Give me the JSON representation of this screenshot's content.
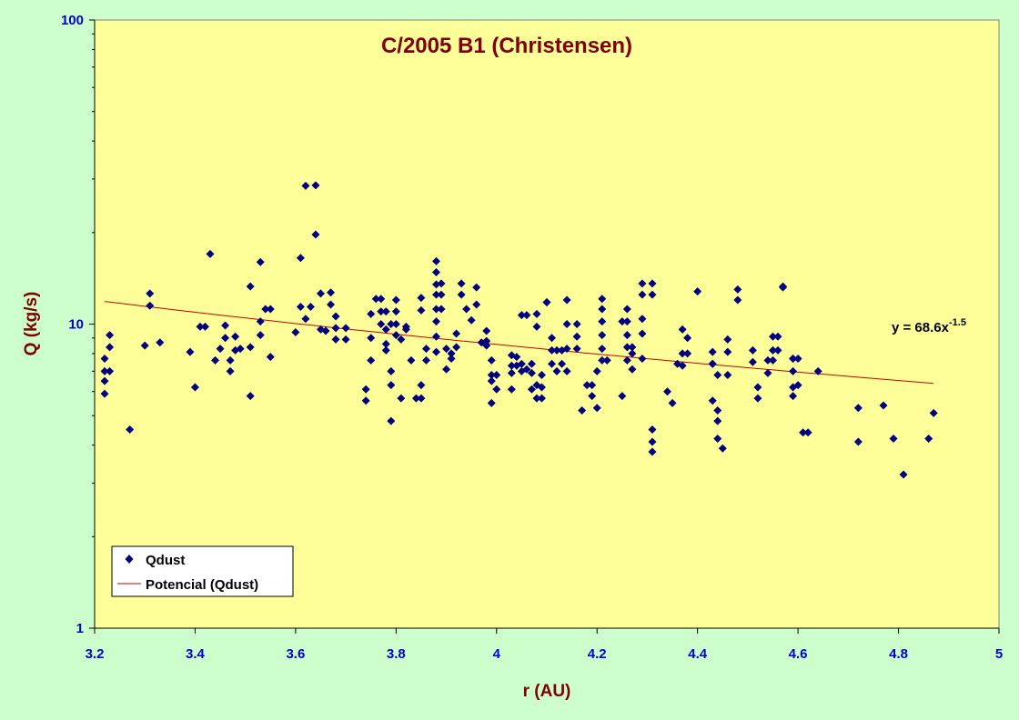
{
  "chart_data": {
    "type": "scatter",
    "title": "C/2005 B1 (Christensen)",
    "xlabel": "r (AU)",
    "ylabel": "Q (kg/s)",
    "xlim": [
      3.2,
      5
    ],
    "ylim": [
      1,
      100
    ],
    "y_scale": "log",
    "x_ticks": [
      "3.2",
      "3.4",
      "3.6",
      "3.8",
      "4",
      "4.2",
      "4.4",
      "4.6",
      "4.8",
      "5"
    ],
    "y_ticks": [
      "1",
      "10",
      "100"
    ],
    "legend_position": "bottom-left",
    "series": [
      {
        "name": "Qdust",
        "marker": "diamond",
        "color": "#000080",
        "points": [
          [
            3.22,
            7.7
          ],
          [
            3.22,
            7.0
          ],
          [
            3.22,
            6.5
          ],
          [
            3.23,
            7.0
          ],
          [
            3.23,
            8.4
          ],
          [
            3.23,
            9.2
          ],
          [
            3.22,
            5.9
          ],
          [
            3.27,
            4.5
          ],
          [
            3.3,
            8.5
          ],
          [
            3.31,
            12.6
          ],
          [
            3.31,
            11.5
          ],
          [
            3.33,
            8.7
          ],
          [
            3.39,
            8.1
          ],
          [
            3.4,
            6.2
          ],
          [
            3.41,
            9.8
          ],
          [
            3.42,
            9.8
          ],
          [
            3.43,
            17.0
          ],
          [
            3.44,
            7.6
          ],
          [
            3.45,
            8.3
          ],
          [
            3.46,
            9.9
          ],
          [
            3.46,
            9.0
          ],
          [
            3.47,
            7.0
          ],
          [
            3.47,
            7.6
          ],
          [
            3.48,
            8.2
          ],
          [
            3.48,
            9.1
          ],
          [
            3.49,
            8.3
          ],
          [
            3.51,
            5.8
          ],
          [
            3.51,
            8.4
          ],
          [
            3.51,
            13.3
          ],
          [
            3.53,
            9.2
          ],
          [
            3.53,
            16.0
          ],
          [
            3.53,
            10.2
          ],
          [
            3.54,
            11.2
          ],
          [
            3.55,
            11.2
          ],
          [
            3.55,
            7.8
          ],
          [
            3.6,
            9.4
          ],
          [
            3.61,
            11.4
          ],
          [
            3.61,
            16.5
          ],
          [
            3.62,
            28.5
          ],
          [
            3.62,
            10.4
          ],
          [
            3.63,
            11.4
          ],
          [
            3.64,
            19.7
          ],
          [
            3.64,
            28.6
          ],
          [
            3.65,
            12.6
          ],
          [
            3.65,
            9.6
          ],
          [
            3.66,
            9.5
          ],
          [
            3.67,
            12.7
          ],
          [
            3.67,
            11.6
          ],
          [
            3.68,
            10.6
          ],
          [
            3.68,
            9.7
          ],
          [
            3.68,
            8.9
          ],
          [
            3.7,
            9.7
          ],
          [
            3.7,
            8.9
          ],
          [
            3.74,
            6.1
          ],
          [
            3.74,
            5.6
          ],
          [
            3.75,
            10.8
          ],
          [
            3.75,
            9.0
          ],
          [
            3.75,
            7.6
          ],
          [
            3.76,
            12.1
          ],
          [
            3.77,
            12.1
          ],
          [
            3.77,
            11.0
          ],
          [
            3.77,
            10.0
          ],
          [
            3.78,
            8.2
          ],
          [
            3.78,
            11.0
          ],
          [
            3.78,
            9.6
          ],
          [
            3.78,
            8.6
          ],
          [
            3.79,
            7.0
          ],
          [
            3.79,
            6.3
          ],
          [
            3.79,
            4.8
          ],
          [
            3.79,
            10.0
          ],
          [
            3.8,
            11.0
          ],
          [
            3.8,
            12.0
          ],
          [
            3.8,
            10.0
          ],
          [
            3.8,
            9.2
          ],
          [
            3.81,
            5.7
          ],
          [
            3.81,
            8.9
          ],
          [
            3.82,
            9.6
          ],
          [
            3.82,
            9.8
          ],
          [
            3.83,
            7.6
          ],
          [
            3.84,
            5.7
          ],
          [
            3.85,
            5.7
          ],
          [
            3.85,
            6.3
          ],
          [
            3.85,
            11.1
          ],
          [
            3.85,
            12.2
          ],
          [
            3.86,
            8.3
          ],
          [
            3.86,
            7.6
          ],
          [
            3.88,
            16.1
          ],
          [
            3.88,
            14.8
          ],
          [
            3.88,
            13.5
          ],
          [
            3.88,
            12.5
          ],
          [
            3.88,
            11.2
          ],
          [
            3.88,
            10.2
          ],
          [
            3.88,
            9.1
          ],
          [
            3.88,
            8.1
          ],
          [
            3.89,
            13.6
          ],
          [
            3.89,
            12.5
          ],
          [
            3.89,
            11.2
          ],
          [
            3.9,
            8.3
          ],
          [
            3.9,
            7.1
          ],
          [
            3.91,
            8.0
          ],
          [
            3.91,
            7.7
          ],
          [
            3.92,
            9.3
          ],
          [
            3.92,
            8.4
          ],
          [
            3.93,
            13.6
          ],
          [
            3.93,
            12.5
          ],
          [
            3.94,
            11.2
          ],
          [
            3.95,
            10.3
          ],
          [
            3.96,
            13.2
          ],
          [
            3.96,
            11.6
          ],
          [
            3.97,
            8.7
          ],
          [
            3.98,
            9.5
          ],
          [
            3.98,
            8.5
          ],
          [
            3.98,
            8.8
          ],
          [
            3.99,
            7.6
          ],
          [
            3.99,
            6.8
          ],
          [
            3.99,
            6.5
          ],
          [
            3.99,
            5.5
          ],
          [
            4.0,
            6.8
          ],
          [
            4.0,
            6.1
          ],
          [
            4.03,
            7.9
          ],
          [
            4.03,
            7.3
          ],
          [
            4.03,
            6.9
          ],
          [
            4.03,
            6.1
          ],
          [
            4.04,
            7.8
          ],
          [
            4.04,
            7.3
          ],
          [
            4.05,
            7.0
          ],
          [
            4.05,
            7.4
          ],
          [
            4.05,
            10.7
          ],
          [
            4.06,
            10.7
          ],
          [
            4.06,
            7.1
          ],
          [
            4.07,
            6.1
          ],
          [
            4.07,
            6.9
          ],
          [
            4.07,
            7.4
          ],
          [
            4.08,
            10.8
          ],
          [
            4.08,
            9.8
          ],
          [
            4.08,
            6.3
          ],
          [
            4.08,
            5.7
          ],
          [
            4.09,
            6.8
          ],
          [
            4.09,
            6.2
          ],
          [
            4.09,
            5.7
          ],
          [
            4.1,
            11.8
          ],
          [
            4.1,
            11.8
          ],
          [
            4.11,
            9.0
          ],
          [
            4.11,
            8.2
          ],
          [
            4.11,
            7.4
          ],
          [
            4.12,
            7.0
          ],
          [
            4.12,
            8.2
          ],
          [
            4.13,
            8.2
          ],
          [
            4.13,
            7.4
          ],
          [
            4.14,
            10.0
          ],
          [
            4.14,
            12.0
          ],
          [
            4.14,
            8.3
          ],
          [
            4.14,
            7.0
          ],
          [
            4.16,
            10.0
          ],
          [
            4.16,
            9.1
          ],
          [
            4.16,
            8.3
          ],
          [
            4.17,
            5.2
          ],
          [
            4.18,
            6.3
          ],
          [
            4.19,
            5.8
          ],
          [
            4.19,
            6.3
          ],
          [
            4.2,
            7.0
          ],
          [
            4.2,
            5.3
          ],
          [
            4.21,
            12.1
          ],
          [
            4.21,
            11.2
          ],
          [
            4.21,
            10.2
          ],
          [
            4.21,
            9.2
          ],
          [
            4.21,
            8.3
          ],
          [
            4.21,
            7.6
          ],
          [
            4.22,
            7.6
          ],
          [
            4.25,
            10.2
          ],
          [
            4.25,
            5.8
          ],
          [
            4.26,
            11.2
          ],
          [
            4.26,
            10.2
          ],
          [
            4.26,
            9.2
          ],
          [
            4.26,
            8.4
          ],
          [
            4.26,
            7.6
          ],
          [
            4.27,
            8.4
          ],
          [
            4.27,
            7.1
          ],
          [
            4.27,
            8.0
          ],
          [
            4.29,
            13.6
          ],
          [
            4.29,
            12.5
          ],
          [
            4.29,
            10.4
          ],
          [
            4.29,
            9.3
          ],
          [
            4.29,
            7.7
          ],
          [
            4.31,
            13.6
          ],
          [
            4.31,
            12.5
          ],
          [
            4.31,
            4.5
          ],
          [
            4.31,
            4.1
          ],
          [
            4.31,
            3.8
          ],
          [
            4.34,
            6.0
          ],
          [
            4.35,
            5.5
          ],
          [
            4.36,
            7.4
          ],
          [
            4.37,
            8.0
          ],
          [
            4.37,
            7.3
          ],
          [
            4.37,
            9.6
          ],
          [
            4.38,
            9.0
          ],
          [
            4.38,
            8.0
          ],
          [
            4.4,
            12.8
          ],
          [
            4.43,
            8.1
          ],
          [
            4.43,
            7.4
          ],
          [
            4.43,
            7.4
          ],
          [
            4.43,
            5.6
          ],
          [
            4.44,
            6.8
          ],
          [
            4.44,
            4.8
          ],
          [
            4.44,
            5.2
          ],
          [
            4.44,
            4.2
          ],
          [
            4.45,
            3.9
          ],
          [
            4.46,
            8.1
          ],
          [
            4.46,
            8.9
          ],
          [
            4.46,
            6.8
          ],
          [
            4.48,
            13.0
          ],
          [
            4.48,
            12.0
          ],
          [
            4.51,
            8.2
          ],
          [
            4.51,
            7.5
          ],
          [
            4.52,
            6.2
          ],
          [
            4.52,
            5.7
          ],
          [
            4.54,
            7.6
          ],
          [
            4.54,
            6.9
          ],
          [
            4.55,
            8.2
          ],
          [
            4.55,
            7.6
          ],
          [
            4.55,
            9.1
          ],
          [
            4.56,
            8.2
          ],
          [
            4.56,
            9.1
          ],
          [
            4.57,
            13.2
          ],
          [
            4.57,
            13.3
          ],
          [
            4.59,
            7.7
          ],
          [
            4.59,
            7.7
          ],
          [
            4.59,
            7.0
          ],
          [
            4.59,
            6.2
          ],
          [
            4.59,
            5.8
          ],
          [
            4.6,
            7.7
          ],
          [
            4.6,
            6.3
          ],
          [
            4.61,
            4.4
          ],
          [
            4.62,
            4.4
          ],
          [
            4.64,
            7.0
          ],
          [
            4.72,
            5.3
          ],
          [
            4.72,
            4.1
          ],
          [
            4.77,
            5.4
          ],
          [
            4.79,
            4.2
          ],
          [
            4.81,
            3.2
          ],
          [
            4.86,
            4.2
          ],
          [
            4.87,
            5.1
          ]
        ]
      },
      {
        "name": "Potencial (Qdust)",
        "type": "line",
        "color": "#cc0000",
        "equation": {
          "a": 68.6,
          "b": -1.5
        },
        "x_range": [
          3.22,
          4.87
        ]
      }
    ],
    "equation_label": {
      "prefix": "y = 68.6x",
      "exponent": "-1.5"
    },
    "colors": {
      "page_background": "#ccffcc",
      "plot_background": "#ffff99",
      "marker": "#000080",
      "trendline": "#cc0000",
      "axis": "#000000",
      "tick_label": "#0000cc",
      "title": "#800000"
    }
  }
}
